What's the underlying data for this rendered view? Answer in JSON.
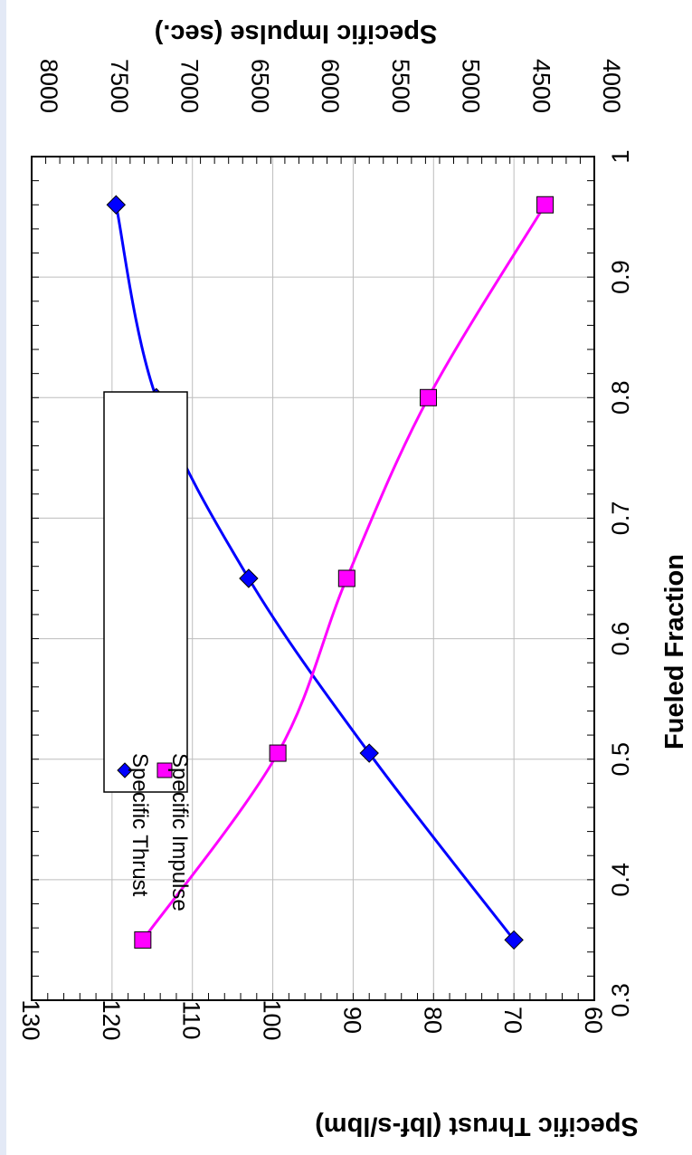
{
  "chart_data": {
    "type": "line",
    "x_label": "Fueled Fraction",
    "x_lim": [
      0.3,
      1
    ],
    "x_ticks": [
      "0.3",
      "0.4",
      "0.5",
      "0.6",
      "0.7",
      "0.8",
      "0.9",
      "1"
    ],
    "left_axis": {
      "label": "Specific Thrust (lbf-s/lbm)",
      "lim": [
        60,
        130
      ],
      "ticks": [
        "60",
        "70",
        "80",
        "90",
        "100",
        "110",
        "120",
        "130"
      ]
    },
    "right_axis": {
      "label": "Specific Impulse (sec.)",
      "lim": [
        4000,
        8000
      ],
      "ticks": [
        "4000",
        "4500",
        "5000",
        "5500",
        "6000",
        "6500",
        "7000",
        "7500",
        "8000"
      ]
    },
    "grid": true,
    "legend_position": "upper-left (rotated)",
    "orientation": "rotated 90 degrees clockwise",
    "series": [
      {
        "name": "Specific Thrust",
        "axis": "left",
        "marker": "diamond",
        "color": "#0000ff",
        "x": [
          0.35,
          0.505,
          0.65,
          0.8,
          0.96
        ],
        "y": [
          70,
          88,
          103,
          114.5,
          119.5
        ]
      },
      {
        "name": "Specific Impulse",
        "axis": "right",
        "marker": "square",
        "color": "#ff00ff",
        "x": [
          0.35,
          0.505,
          0.65,
          0.8,
          0.96
        ],
        "y": [
          7210,
          6250,
          5760,
          5180,
          4350
        ]
      }
    ]
  }
}
